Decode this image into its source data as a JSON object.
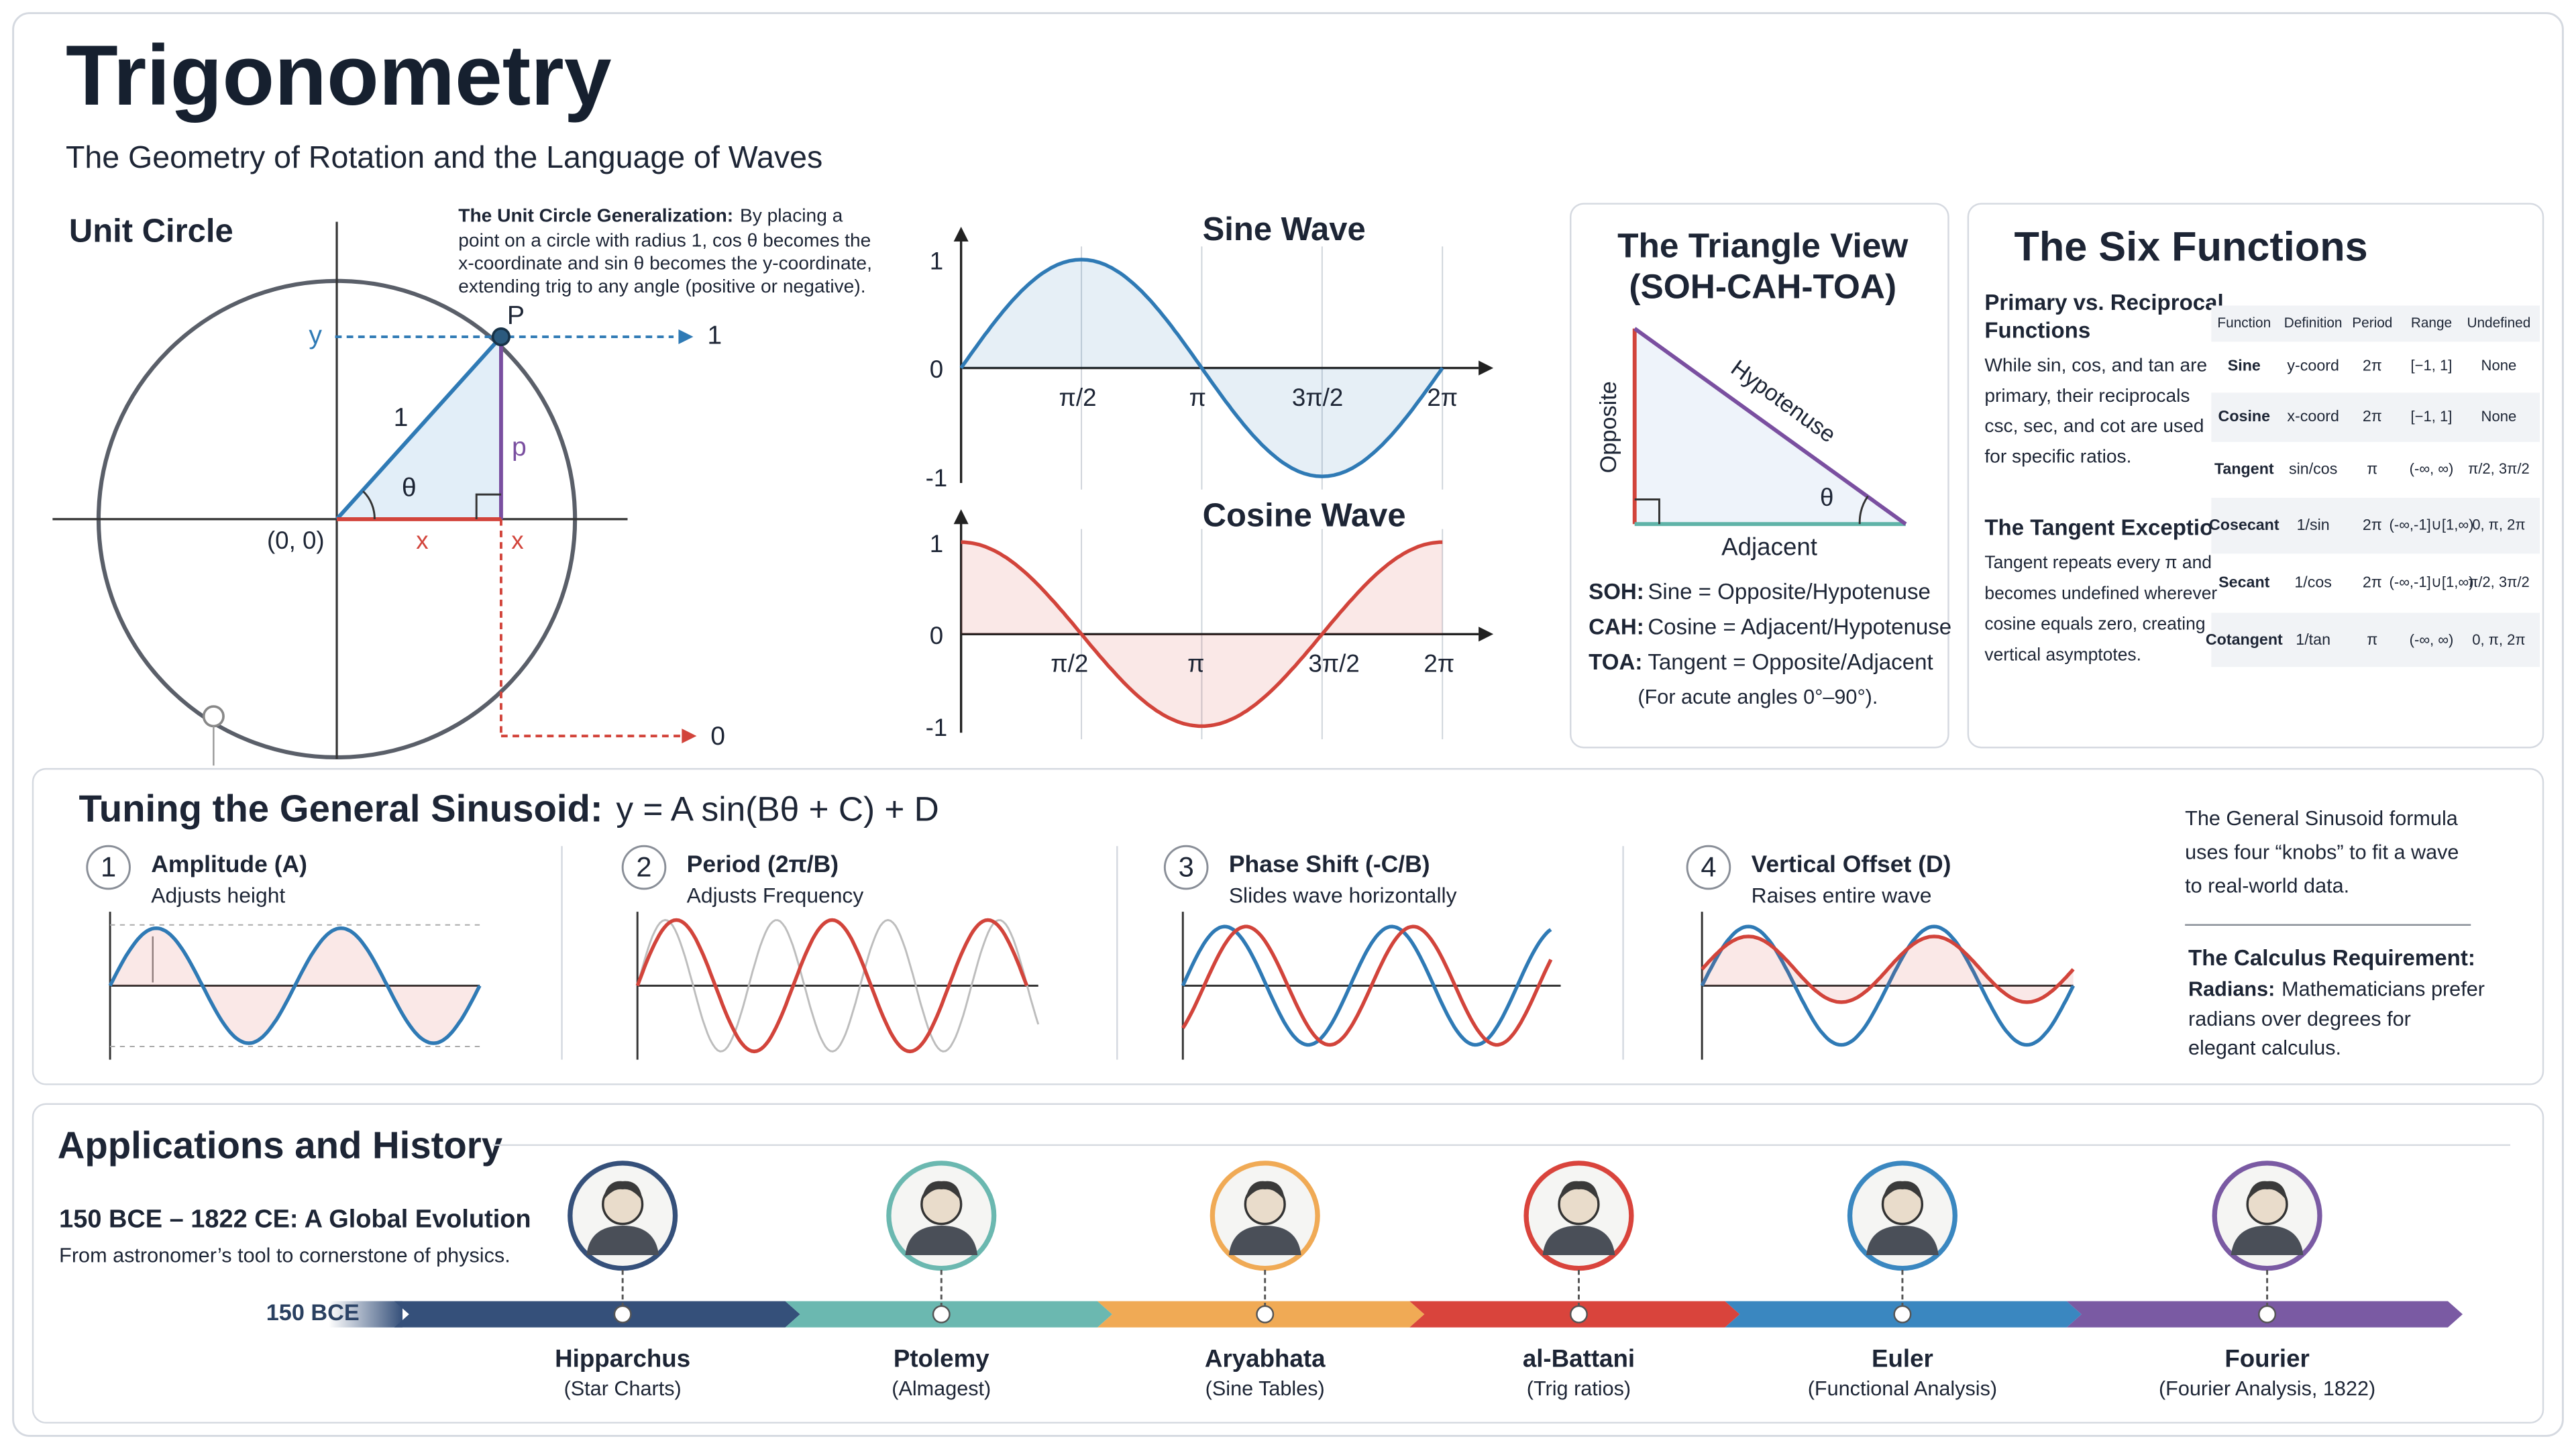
{
  "header": {
    "title": "Trigonometry",
    "subtitle": "The Geometry of Rotation and the Language of Waves"
  },
  "unit_circle": {
    "title": "Unit Circle",
    "note_bold": "The Unit Circle Generalization:",
    "note_first": "By placing a",
    "note_lines": [
      "point on a circle with radius 1, cos θ becomes the",
      "x-coordinate and sin θ becomes the y-coordinate,",
      "extending trig to any angle (positive or negative)."
    ],
    "labels": {
      "y": "y",
      "y_end": "1",
      "point": "P",
      "radius": "1",
      "angle": "θ",
      "side": "p",
      "origin": "(0, 0)",
      "x_base": "x",
      "x_drop": "x",
      "x_end": "0"
    }
  },
  "sine_wave": {
    "title": "Sine Wave",
    "y_labels": [
      "1",
      "0",
      "-1"
    ],
    "x_labels": [
      "π/2",
      "π",
      "3π/2",
      "2π"
    ]
  },
  "cosine_wave": {
    "title": "Cosine Wave",
    "y_labels": [
      "1",
      "0",
      "-1"
    ],
    "x_labels": [
      "π/2",
      "π",
      "3π/2",
      "2π"
    ]
  },
  "triangle_view": {
    "title": [
      "The Triangle View",
      "(SOH-CAH-TOA)"
    ],
    "labels": {
      "opposite": "Opposite",
      "hypotenuse": "Hypotenuse",
      "adjacent": "Adjacent",
      "angle": "θ"
    },
    "rules": [
      {
        "key": "SOH:",
        "text": "Sine = Opposite/Hypotenuse"
      },
      {
        "key": "CAH:",
        "text": "Cosine = Adjacent/Hypotenuse"
      },
      {
        "key": "TOA:",
        "text": "Tangent = Opposite/Adjacent"
      }
    ],
    "note": "(For acute angles 0°–90°)."
  },
  "six_functions": {
    "title": "The Six Functions",
    "primary_title": [
      "Primary vs. Reciprocal",
      "Functions"
    ],
    "primary_text": [
      "While sin, cos, and tan are",
      "primary, their reciprocals",
      "csc, sec, and cot are used",
      "for specific ratios."
    ],
    "tangent_title": "The Tangent Exception",
    "tangent_text": [
      "Tangent repeats every π and",
      "becomes undefined wherever",
      "cosine equals zero, creating",
      "vertical asymptotes."
    ],
    "table": {
      "header": [
        "Function",
        "Definition",
        "Period",
        "Range",
        "Undefined"
      ],
      "rows": [
        [
          "Sine",
          "y-coord",
          "2π",
          "[−1, 1]",
          "None"
        ],
        [
          "Cosine",
          "x-coord",
          "2π",
          "[−1, 1]",
          "None"
        ],
        [
          "Tangent",
          "sin/cos",
          "π",
          "(-∞, ∞)",
          "π/2, 3π/2"
        ],
        [
          "Cosecant",
          "1/sin",
          "2π",
          "(-∞,-1]∪[1,∞)",
          "0, π, 2π"
        ],
        [
          "Secant",
          "1/cos",
          "2π",
          "(-∞,-1]∪[1,∞)",
          "π/2, 3π/2"
        ],
        [
          "Cotangent",
          "1/tan",
          "π",
          "(-∞, ∞)",
          "0, π, 2π"
        ]
      ]
    }
  },
  "sinusoid": {
    "title": "Tuning the General Sinusoid:",
    "formula": "y = A sin(Bθ + C) + D",
    "knobs": [
      {
        "number": "1",
        "title": "Amplitude (A)",
        "description": "Adjusts height"
      },
      {
        "number": "2",
        "title": "Period (2π/B)",
        "description": "Adjusts Frequency"
      },
      {
        "number": "3",
        "title": "Phase Shift (-C/B)",
        "description": "Slides wave horizontally"
      },
      {
        "number": "4",
        "title": "Vertical Offset (D)",
        "description": "Raises entire wave"
      }
    ],
    "side_note": [
      "The General Sinusoid formula",
      "uses four “knobs” to fit a wave",
      "to real-world data."
    ],
    "calculus_title": "The Calculus Requirement:",
    "calculus_bold": "Radians:",
    "calculus_first": "Mathematicians prefer",
    "calculus_lines": [
      "radians over degrees for",
      "elegant calculus."
    ]
  },
  "applications": {
    "title": "Applications and History",
    "subtitle": "150 BCE – 1822 CE: A Global Evolution",
    "description": "From astronomer’s tool to cornerstone of physics.",
    "start": "150 BCE",
    "people": [
      {
        "name": "Hipparchus",
        "note": "(Star Charts)"
      },
      {
        "name": "Ptolemy",
        "note": "(Almagest)"
      },
      {
        "name": "Aryabhata",
        "note": "(Sine Tables)"
      },
      {
        "name": "al-Battani",
        "note": "(Trig ratios)"
      },
      {
        "name": "Euler",
        "note": "(Functional Analysis)"
      },
      {
        "name": "Fourier",
        "note": "(Fourier Analysis, 1822)"
      }
    ]
  }
}
